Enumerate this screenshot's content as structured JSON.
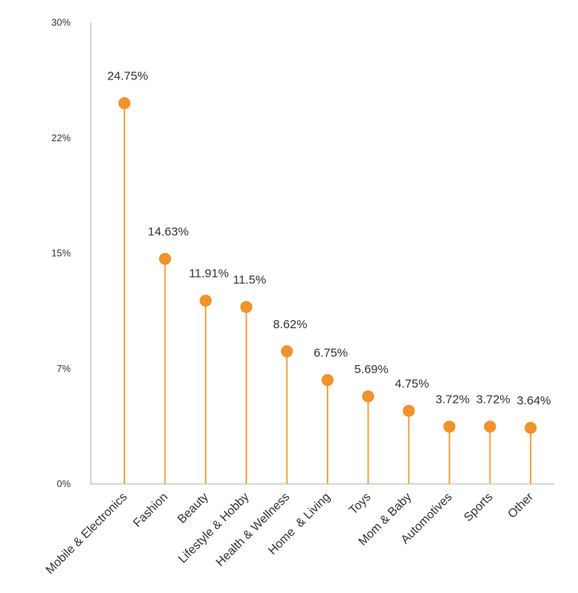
{
  "chart_data": {
    "type": "lollipop",
    "categories": [
      "Mobile & Electronics",
      "Fashion",
      "Beauty",
      "Lifestyle & Hobby",
      "Health & Wellness",
      "Home  & Living",
      "Toys",
      "Mom & Baby",
      "Automotives",
      "Sports",
      "Other"
    ],
    "values": [
      24.75,
      14.63,
      11.91,
      11.5,
      8.62,
      6.75,
      5.69,
      4.75,
      3.72,
      3.72,
      3.64
    ],
    "value_labels": [
      "24.75%",
      "14.63%",
      "11.91%",
      "11.5%",
      "8.62%",
      "6.75%",
      "5.69%",
      "4.75%",
      "3.72%",
      "3.72%",
      "3.64%"
    ],
    "y_ticks": [
      "0%",
      "7%",
      "15%",
      "22%",
      "30%"
    ],
    "ylim": [
      0,
      30
    ],
    "grid": false,
    "legend": false,
    "colors": {
      "marker": "#f0932b",
      "axis": "#b0b0b0"
    }
  }
}
